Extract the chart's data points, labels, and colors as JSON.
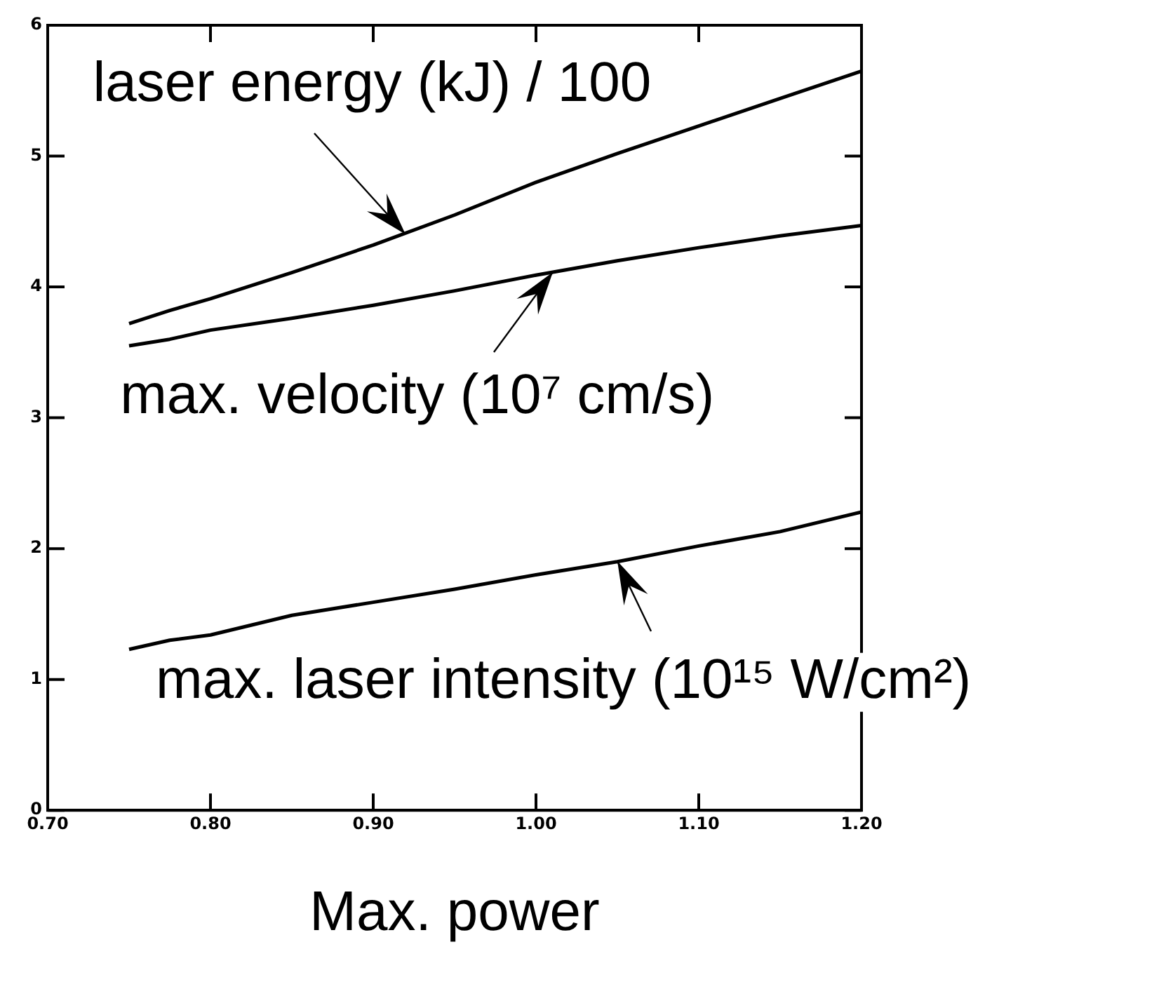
{
  "chart_data": {
    "type": "line",
    "xlabel": "Max. power",
    "x": [
      0.75,
      0.775,
      0.8,
      0.85,
      0.9,
      0.95,
      1.0,
      1.05,
      1.1,
      1.15,
      1.2
    ],
    "series": [
      {
        "color": "#000000",
        "values": [
          3.72,
          3.82,
          3.91,
          4.11,
          4.32,
          4.55,
          4.8,
          5.02,
          5.23,
          5.44,
          5.65
        ]
      },
      {
        "color": "#000000",
        "values": [
          3.55,
          3.6,
          3.67,
          3.76,
          3.86,
          3.97,
          4.09,
          4.2,
          4.3,
          4.39,
          4.47
        ]
      },
      {
        "color": "#000000",
        "values": [
          1.23,
          1.3,
          1.34,
          1.49,
          1.59,
          1.69,
          1.8,
          1.9,
          2.02,
          2.13,
          2.28
        ]
      }
    ],
    "xlim": [
      0.7,
      1.2
    ],
    "xticks": [
      {
        "value": 0.7,
        "label": "0.70"
      },
      {
        "value": 0.8,
        "label": "0.80"
      },
      {
        "value": 0.9,
        "label": "0.90"
      },
      {
        "value": 1.0,
        "label": "1.00"
      },
      {
        "value": 1.1,
        "label": "1.10"
      },
      {
        "value": 1.2,
        "label": "1.20"
      }
    ],
    "ylim": [
      0,
      6
    ],
    "yticks": [
      0,
      1,
      2,
      3,
      4,
      5,
      6
    ],
    "grid": false,
    "legend": false,
    "marker": "none",
    "line_style": "solid",
    "annotations": [
      {
        "text": "laser energy (kJ) / 100",
        "x": 0.92,
        "y": 4.4
      },
      {
        "text": "max. velocity (10⁷ cm/s)",
        "x": 1.01,
        "y": 4.11
      },
      {
        "text": "max. laser intensity (10¹⁵ W/cm²)",
        "x": 1.05,
        "y": 1.9
      }
    ]
  }
}
